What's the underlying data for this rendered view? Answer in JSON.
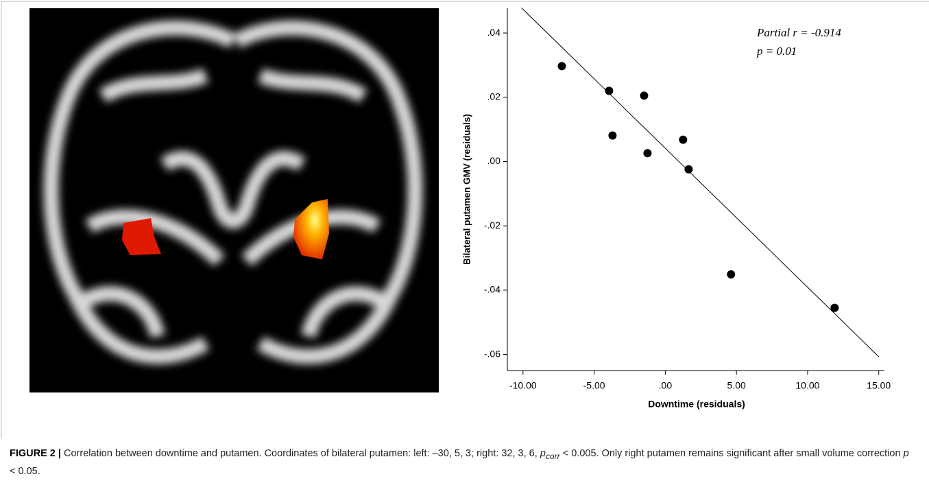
{
  "chart_data": {
    "type": "scatter",
    "xlabel": "Downtime (residuals)",
    "ylabel": "Bilateral putamen GMV (residuals)",
    "x": [
      -7.27,
      -3.95,
      -1.49,
      -3.71,
      1.25,
      -1.25,
      1.64,
      4.62,
      11.9
    ],
    "series": [
      {
        "color": "#000000",
        "values": [
          0.0297,
          0.022,
          0.0205,
          0.0081,
          0.0068,
          0.0026,
          -0.0024,
          -0.0351,
          -0.0455
        ]
      }
    ],
    "fit": {
      "x": [
        -10.1,
        15
      ],
      "y": [
        0.0478,
        -0.0607
      ]
    },
    "xlim": [
      -11.1,
      15.4
    ],
    "ylim": [
      -0.065,
      0.0477
    ],
    "xticks": [
      {
        "value": -10,
        "label": "-10.00"
      },
      {
        "value": -5,
        "label": "-5.00"
      },
      {
        "value": 0,
        "label": ".00"
      },
      {
        "value": 5,
        "label": "5.00"
      },
      {
        "value": 10,
        "label": "10.00"
      },
      {
        "value": 15,
        "label": "15.00"
      }
    ],
    "yticks": [
      {
        "value": 0.04,
        "label": ".04"
      },
      {
        "value": 0.02,
        "label": ".02"
      },
      {
        "value": 0,
        "label": ".00"
      },
      {
        "value": -0.02,
        "label": "-.02"
      },
      {
        "value": -0.04,
        "label": "-.04"
      },
      {
        "value": -0.06,
        "label": "-.06"
      }
    ],
    "annotations": [
      "Partial r = -0.914",
      "p = 0.01"
    ]
  },
  "caption": {
    "label": "FIGURE 2 |",
    "text1": " Correlation between downtime and putamen. Coordinates of bilateral putamen: left: –30, 5, 3; right: 32, 3, 6, ",
    "p1": "p",
    "p1sub": "corr",
    "text2": " < 0.005. Only right putamen remains significant after small volume correction ",
    "p2": "p",
    "text3": " < 0.05."
  }
}
